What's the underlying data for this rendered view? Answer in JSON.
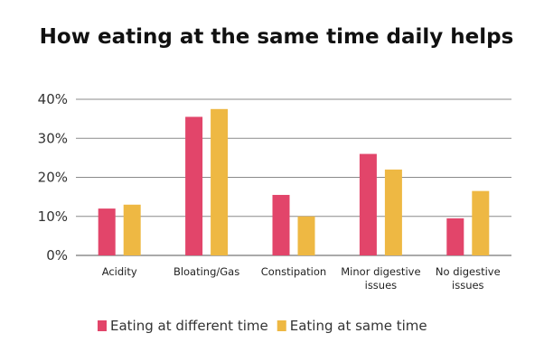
{
  "chart_data": {
    "type": "bar",
    "title": "How eating at the same time daily helps",
    "xlabel": "",
    "ylabel": "",
    "categories": [
      [
        "Acidity"
      ],
      [
        "Bloating/Gas"
      ],
      [
        "Constipation"
      ],
      [
        "Minor digestive",
        "issues"
      ],
      [
        "No digestive",
        "issues"
      ]
    ],
    "series": [
      {
        "name": "Eating at different time",
        "color": "#E2456A",
        "values": [
          12,
          35.5,
          15.5,
          26,
          9.5
        ]
      },
      {
        "name": "Eating at same time",
        "color": "#EEB843",
        "values": [
          13,
          37.5,
          10,
          22,
          16.5
        ]
      }
    ],
    "ylim": [
      0,
      40
    ],
    "yticks": [
      0,
      10,
      20,
      30,
      40
    ],
    "ytick_labels": [
      "0%",
      "10%",
      "20%",
      "30%",
      "40%"
    ],
    "grid": true,
    "legend_position": "bottom-center"
  }
}
